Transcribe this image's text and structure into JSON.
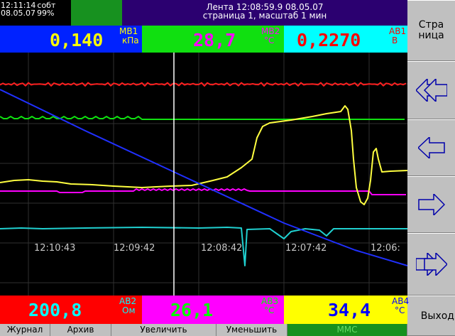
{
  "header": {
    "time": "12:11:14",
    "date": "08.05.07",
    "status_word": "собт",
    "status_percent": "99%",
    "tape_line1": "Лента 12:08:59.9 08.05.07",
    "tape_line2": "страница 1, масштаб 1 мин"
  },
  "indicators_top": [
    {
      "value": "0,140",
      "tag1": "MB1",
      "tag2": "кПа",
      "bg": "#0022ff",
      "fg": "#ffff00"
    },
    {
      "value": "28,7",
      "tag1": "MB2",
      "tag2": "°C",
      "bg": "#10e010",
      "fg": "#ff00ff"
    },
    {
      "value": "0,2270",
      "tag1": "AB1",
      "tag2": "B",
      "bg": "#00ffff",
      "fg": "#ff0000"
    }
  ],
  "indicators_bottom": [
    {
      "value": "200,8",
      "tag1": "AB2",
      "tag2": "Ом",
      "bg": "#ff0000",
      "fg": "#00ffff"
    },
    {
      "value": "26,1",
      "tag1": "AB3",
      "tag2": "°C",
      "bg": "#ff00ff",
      "fg": "#00ff00"
    },
    {
      "value": "34,4",
      "tag1": "AB4",
      "tag2": "°C",
      "bg": "#ffff00",
      "fg": "#0000ff"
    }
  ],
  "plot": {
    "time_labels": [
      "12:10:43",
      "12:09:42",
      "12:08:42",
      "12:07:42",
      "12:06:"
    ]
  },
  "side_buttons": {
    "page_label": "Стра ница",
    "exit_label": "Выход",
    "icons": [
      "double-left-arrow-icon",
      "left-arrow-icon",
      "right-arrow-icon",
      "double-right-arrow-icon"
    ]
  },
  "bottom_buttons": [
    {
      "label": "Журнал"
    },
    {
      "label": "Архив"
    },
    {
      "label": "Увеличить"
    },
    {
      "label": "Уменьшить"
    },
    {
      "label": "MMC"
    }
  ],
  "colors": {
    "trace_red": "#ff2020",
    "trace_green": "#10e010",
    "trace_yellow": "#ffff40",
    "trace_magenta": "#ff00ff",
    "trace_cyan": "#20d0d0",
    "trace_blue": "#2030ff",
    "grid": "#303030",
    "cursor": "#ffffff"
  }
}
